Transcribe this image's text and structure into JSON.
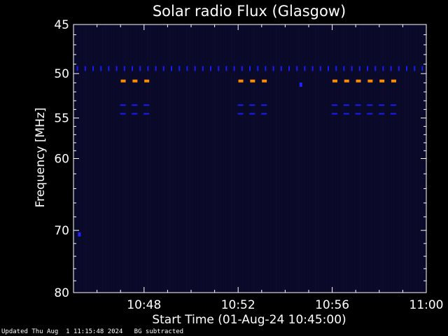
{
  "chart_data": {
    "type": "heatmap",
    "title": "Solar radio Flux (Glasgow)",
    "xlabel": "Start Time (01-Aug-24 10:45:00)",
    "ylabel": "Frequency [MHz]",
    "x_range": [
      "10:45",
      "11:00"
    ],
    "y_range_mhz": [
      45,
      80
    ],
    "y_scale": "log",
    "x_ticks": [
      "10:48",
      "10:52",
      "10:56",
      "11:00"
    ],
    "y_ticks": [
      45,
      50,
      55,
      60,
      70,
      80
    ],
    "background_color": "#0a0a28",
    "features": [
      {
        "name": "dashes",
        "frequency_mhz": 49.5,
        "color": "#1a1aff",
        "times": [
          "10:45:10",
          "10:45:30",
          "10:45:50",
          "10:46:10",
          "10:46:30",
          "10:46:50",
          "10:47:10",
          "10:47:30",
          "10:47:50",
          "10:48:10",
          "10:48:30",
          "10:48:50",
          "10:49:10",
          "10:49:30",
          "10:49:50",
          "10:50:10",
          "10:50:30",
          "10:50:50",
          "10:51:10",
          "10:51:30",
          "10:51:50",
          "10:52:10",
          "10:52:30",
          "10:52:50",
          "10:53:10",
          "10:53:30",
          "10:53:50",
          "10:54:10",
          "10:54:30",
          "10:54:50",
          "10:55:10",
          "10:55:30",
          "10:55:50",
          "10:56:10",
          "10:56:30",
          "10:56:50",
          "10:57:10",
          "10:57:30",
          "10:57:50",
          "10:58:10",
          "10:58:30",
          "10:58:50",
          "10:59:10",
          "10:59:30",
          "10:59:50"
        ]
      },
      {
        "name": "dashes",
        "frequency_mhz": 50.8,
        "color": "#ff8c00",
        "times": [
          "10:47:06",
          "10:47:36",
          "10:48:06",
          "10:52:06",
          "10:52:36",
          "10:53:06",
          "10:56:06",
          "10:56:36",
          "10:57:06",
          "10:57:36",
          "10:58:06",
          "10:58:36"
        ]
      },
      {
        "name": "dashes",
        "frequency_mhz": 53.5,
        "color": "#1a1aff",
        "times": [
          "10:47:06",
          "10:47:36",
          "10:48:06",
          "10:52:06",
          "10:52:36",
          "10:53:06",
          "10:56:06",
          "10:56:36",
          "10:57:06",
          "10:57:36",
          "10:58:06",
          "10:58:36"
        ]
      },
      {
        "name": "dashes",
        "frequency_mhz": 54.5,
        "color": "#1a1aff",
        "times": [
          "10:47:06",
          "10:47:36",
          "10:48:06",
          "10:52:06",
          "10:52:36",
          "10:53:06",
          "10:56:06",
          "10:56:36",
          "10:57:06",
          "10:57:36",
          "10:58:06",
          "10:58:36"
        ]
      },
      {
        "name": "spot",
        "frequency_mhz": 70.6,
        "color": "#2222ff",
        "times": [
          "10:45:15"
        ]
      },
      {
        "name": "spot",
        "frequency_mhz": 51.2,
        "color": "#2222ff",
        "times": [
          "10:54:40"
        ]
      }
    ]
  },
  "footer": {
    "updated": "Updated Thu Aug  1 11:15:48 2024",
    "bg_note": "BG subtracted"
  }
}
